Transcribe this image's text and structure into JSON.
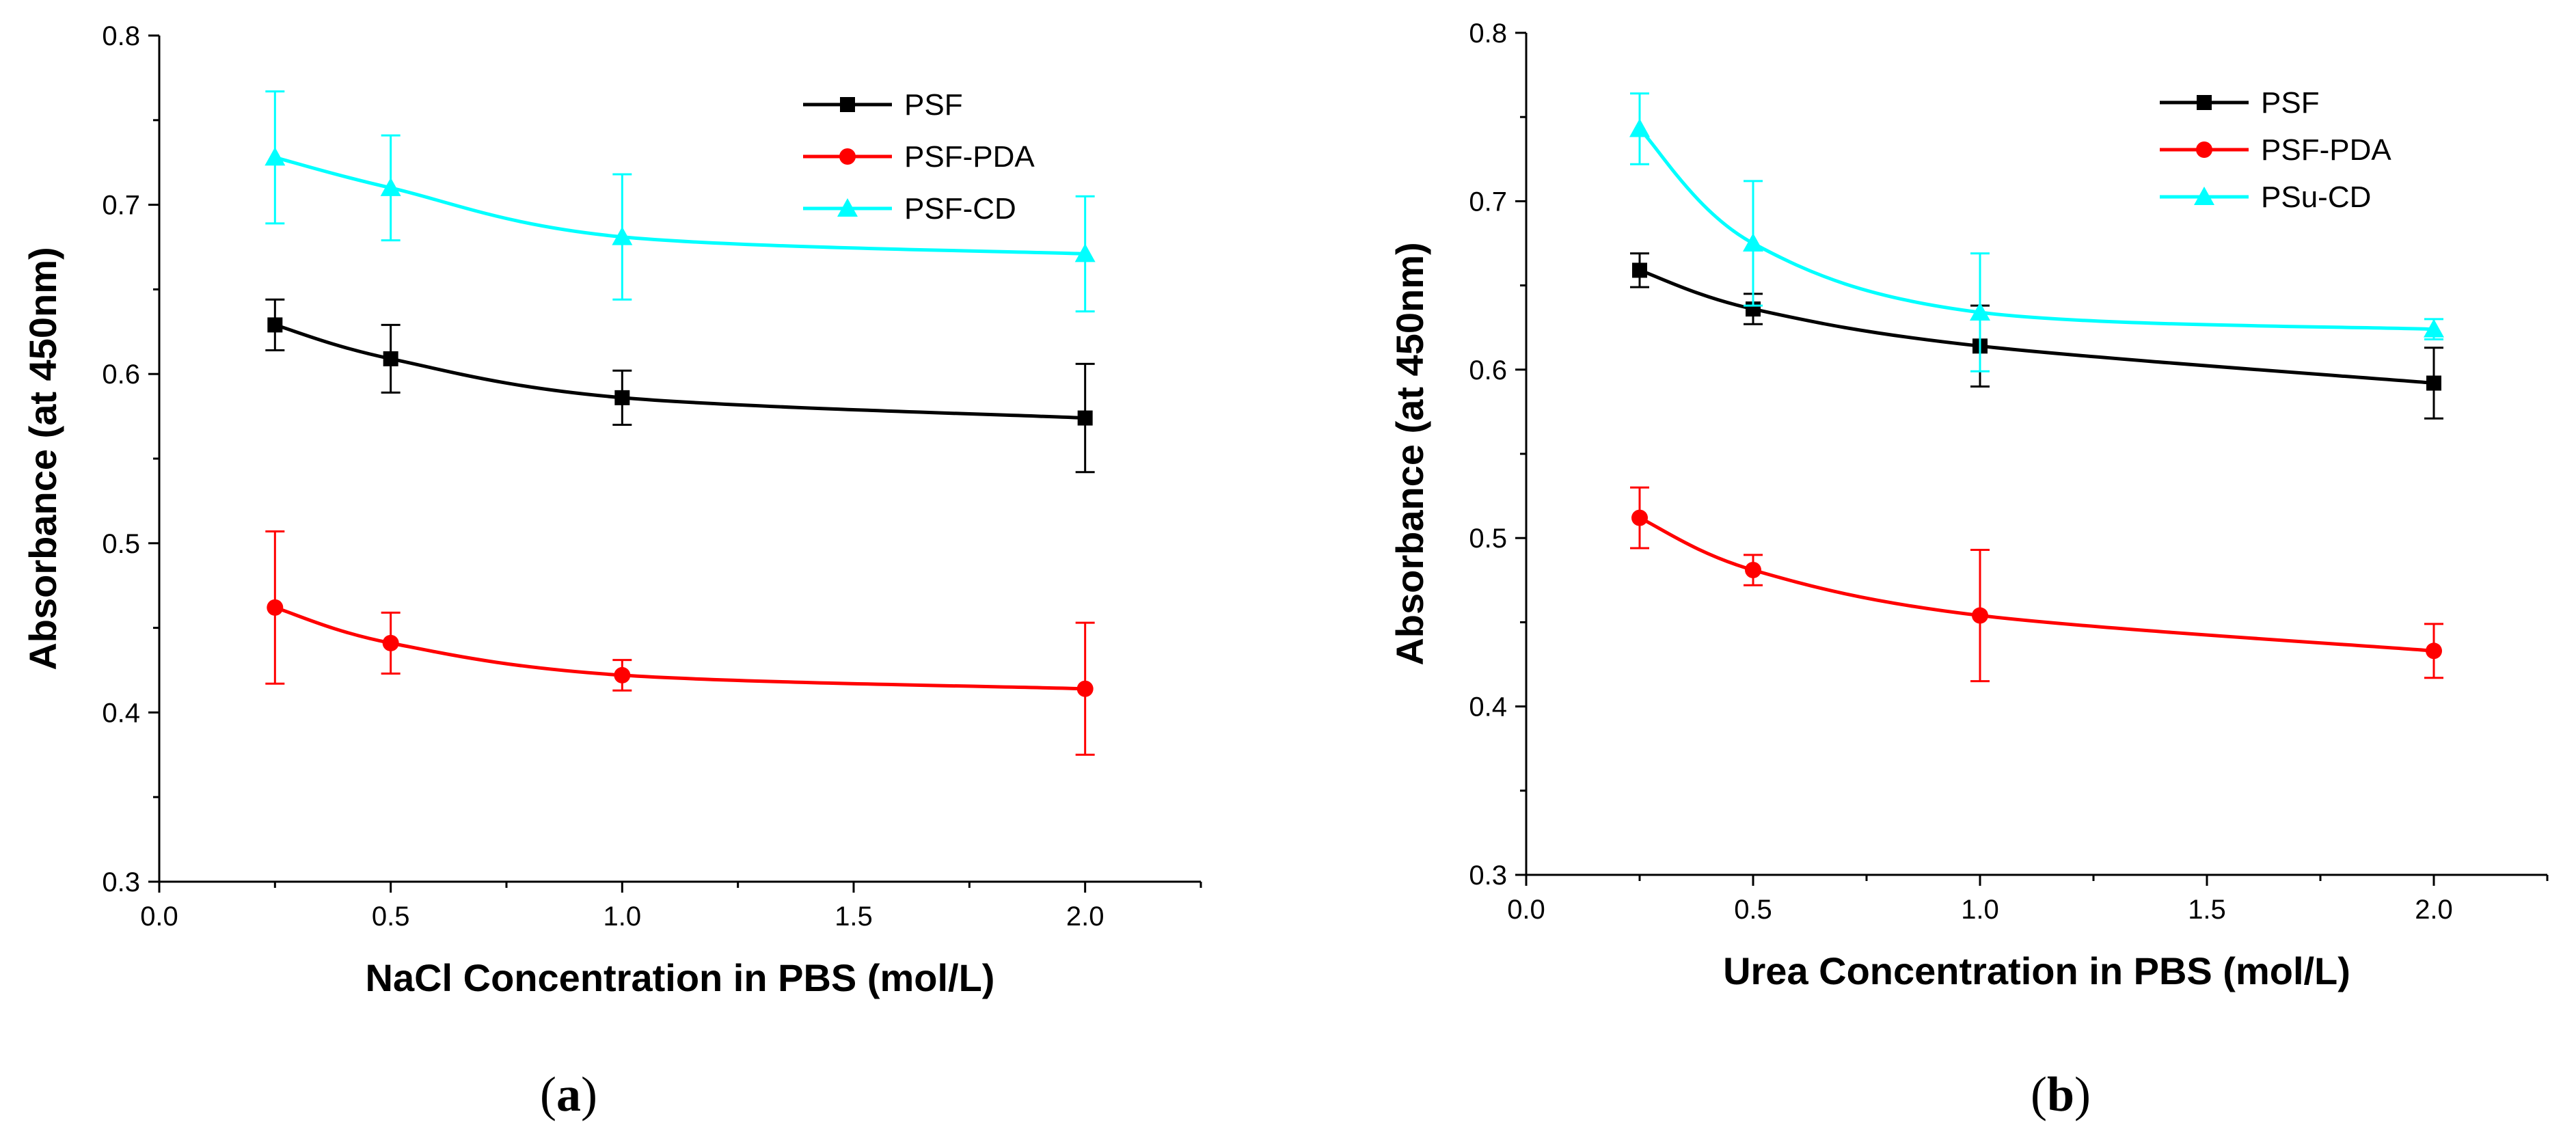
{
  "colors": {
    "PSF": "#000000",
    "PSF-PDA": "#ff0000",
    "cyan": "#00ffff"
  },
  "chart_data": [
    {
      "type": "line",
      "panel": "(a)",
      "caption_open": "(",
      "caption_letter": "a",
      "caption_close": ")",
      "xlabel": "NaCl Concentration in PBS (mol/L)",
      "ylabel": "Absorbance (at 450nm)",
      "xlim": [
        0.0,
        2.25
      ],
      "ylim": [
        0.3,
        0.8
      ],
      "xticks": [
        0.0,
        0.5,
        1.0,
        1.5,
        2.0
      ],
      "xtick_labels": [
        "0.0",
        "0.5",
        "1.0",
        "1.5",
        "2.0"
      ],
      "yticks": [
        0.3,
        0.4,
        0.5,
        0.6,
        0.7,
        0.8
      ],
      "ytick_labels": [
        "0.3",
        "0.4",
        "0.5",
        "0.6",
        "0.7",
        "0.8"
      ],
      "legend_position": "top-right",
      "series": [
        {
          "name": "PSF",
          "color": "#000000",
          "marker": "square",
          "x": [
            0.25,
            0.5,
            1.0,
            2.0
          ],
          "values": [
            0.629,
            0.609,
            0.586,
            0.574
          ],
          "errors": [
            0.015,
            0.02,
            0.016,
            0.032
          ]
        },
        {
          "name": "PSF-PDA",
          "color": "#ff0000",
          "marker": "circle",
          "x": [
            0.25,
            0.5,
            1.0,
            2.0
          ],
          "values": [
            0.462,
            0.441,
            0.422,
            0.414
          ],
          "errors": [
            0.045,
            0.018,
            0.009,
            0.039
          ]
        },
        {
          "name": "PSF-CD",
          "color": "#00ffff",
          "marker": "triangle",
          "x": [
            0.25,
            0.5,
            1.0,
            2.0
          ],
          "values": [
            0.728,
            0.71,
            0.681,
            0.671
          ],
          "errors": [
            0.039,
            0.031,
            0.037,
            0.034
          ]
        }
      ]
    },
    {
      "type": "line",
      "panel": "(b)",
      "caption_open": "(",
      "caption_letter": "b",
      "caption_close": ")",
      "xlabel": "Urea Concentration in PBS (mol/L)",
      "ylabel": "Absorbance (at 450nm)",
      "xlim": [
        0.0,
        2.25
      ],
      "ylim": [
        0.3,
        0.8
      ],
      "xticks": [
        0.0,
        0.5,
        1.0,
        1.5,
        2.0
      ],
      "xtick_labels": [
        "0.0",
        "0.5",
        "1.0",
        "1.5",
        "2.0"
      ],
      "yticks": [
        0.3,
        0.4,
        0.5,
        0.6,
        0.7,
        0.8
      ],
      "ytick_labels": [
        "0.3",
        "0.4",
        "0.5",
        "0.6",
        "0.7",
        "0.8"
      ],
      "legend_position": "top-right",
      "series": [
        {
          "name": "PSF",
          "color": "#000000",
          "marker": "square",
          "x": [
            0.25,
            0.5,
            1.0,
            2.0
          ],
          "values": [
            0.659,
            0.636,
            0.614,
            0.592
          ],
          "errors": [
            0.01,
            0.009,
            0.024,
            0.021
          ]
        },
        {
          "name": "PSF-PDA",
          "color": "#ff0000",
          "marker": "circle",
          "x": [
            0.25,
            0.5,
            1.0,
            2.0
          ],
          "values": [
            0.512,
            0.481,
            0.454,
            0.433
          ],
          "errors": [
            0.018,
            0.009,
            0.039,
            0.016
          ]
        },
        {
          "name": "PSu-CD",
          "color": "#00ffff",
          "marker": "triangle",
          "x": [
            0.25,
            0.5,
            1.0,
            2.0
          ],
          "values": [
            0.743,
            0.675,
            0.634,
            0.624
          ],
          "errors": [
            0.021,
            0.037,
            0.035,
            0.006
          ]
        }
      ]
    }
  ]
}
